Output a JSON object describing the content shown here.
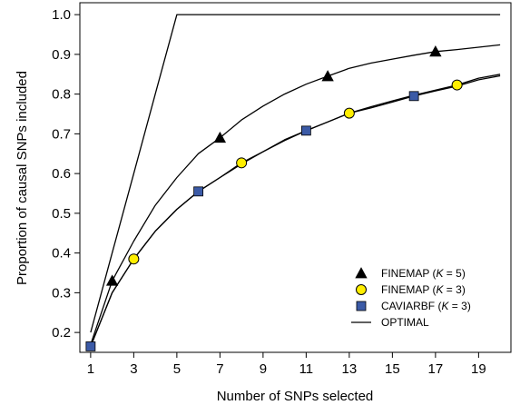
{
  "chart_data": {
    "type": "line",
    "xlabel": "Number of SNPs selected",
    "ylabel": "Proportion of causal SNPs included",
    "xlim": [
      0.5,
      20.5
    ],
    "ylim": [
      0.15,
      1.03
    ],
    "x_ticks": [
      1,
      3,
      5,
      7,
      9,
      11,
      13,
      15,
      17,
      19
    ],
    "y_ticks": [
      0.2,
      0.3,
      0.4,
      0.5,
      0.6,
      0.7,
      0.8,
      0.9,
      1.0
    ],
    "y_tick_labels": [
      "0.2",
      "0.3",
      "0.4",
      "0.5",
      "0.6",
      "0.7",
      "0.8",
      "0.9",
      "1.0"
    ],
    "grid": false,
    "legend_position": "bottom-right",
    "x": [
      1,
      2,
      3,
      4,
      5,
      6,
      7,
      8,
      9,
      10,
      11,
      12,
      13,
      14,
      15,
      16,
      17,
      18,
      19,
      20
    ],
    "series": [
      {
        "name_prefix": "FINEMAP (",
        "name_var": "K",
        "name_suffix": " = 5)",
        "marker": "triangle",
        "marker_color": "#000000",
        "marker_x": [
          2,
          7,
          12,
          17
        ],
        "values": [
          0.17,
          0.33,
          0.43,
          0.52,
          0.59,
          0.65,
          0.69,
          0.735,
          0.77,
          0.8,
          0.825,
          0.845,
          0.865,
          0.878,
          0.888,
          0.898,
          0.907,
          0.912,
          0.918,
          0.924
        ]
      },
      {
        "name_prefix": "FINEMAP (",
        "name_var": "K",
        "name_suffix": " = 3)",
        "marker": "circle",
        "marker_color": "#ffee00",
        "marker_x": [
          3,
          8,
          13,
          18
        ],
        "values": [
          0.165,
          0.3,
          0.385,
          0.455,
          0.51,
          0.555,
          0.59,
          0.627,
          0.655,
          0.685,
          0.708,
          0.73,
          0.752,
          0.768,
          0.783,
          0.797,
          0.81,
          0.823,
          0.84,
          0.85
        ]
      },
      {
        "name_prefix": "CAVIARBF (",
        "name_var": "K",
        "name_suffix": " = 3)",
        "marker": "square",
        "marker_color": "#3b5aa6",
        "marker_x": [
          1,
          6,
          11,
          16
        ],
        "values": [
          0.165,
          0.3,
          0.385,
          0.455,
          0.51,
          0.555,
          0.59,
          0.624,
          0.655,
          0.683,
          0.708,
          0.73,
          0.752,
          0.765,
          0.78,
          0.795,
          0.808,
          0.82,
          0.836,
          0.846
        ]
      },
      {
        "name_prefix": "OPTIMAL",
        "name_var": "",
        "name_suffix": "",
        "marker": "none",
        "marker_color": "#000000",
        "marker_x": [],
        "values": [
          0.2,
          0.4,
          0.6,
          0.8,
          1.0,
          1.0,
          1.0,
          1.0,
          1.0,
          1.0,
          1.0,
          1.0,
          1.0,
          1.0,
          1.0,
          1.0,
          1.0,
          1.0,
          1.0,
          1.0
        ]
      }
    ]
  }
}
